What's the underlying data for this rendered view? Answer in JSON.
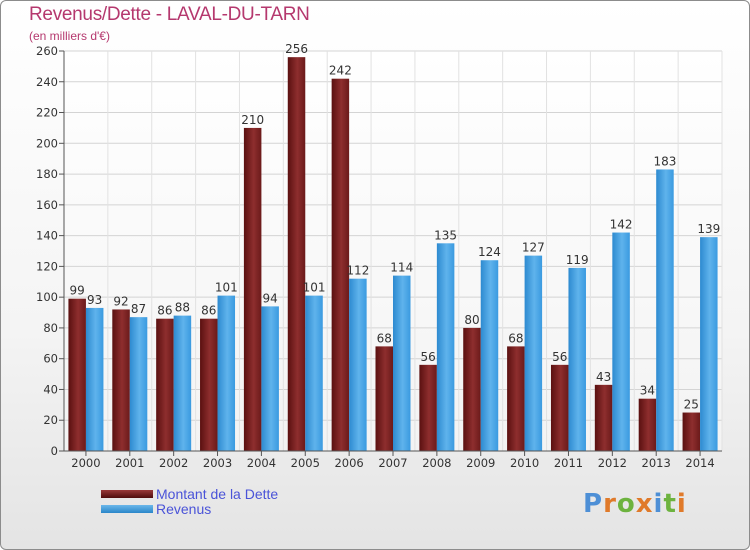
{
  "title": "Revenus/Dette - LAVAL-DU-TARN",
  "subtitle": "(en milliers d'€)",
  "colors": {
    "dette": "#7a1d1d",
    "revenus": "#3f9fdf",
    "title": "#b5386e",
    "legend_text": "#4a53d8"
  },
  "legend": [
    {
      "label": "Montant de la Dette",
      "color": "#7a1d1d"
    },
    {
      "label": "Revenus",
      "color": "#3f9fdf"
    }
  ],
  "logo": {
    "text": "Proxiti"
  },
  "chart_data": {
    "type": "bar",
    "title": "Revenus/Dette - LAVAL-DU-TARN",
    "subtitle": "(en milliers d'€)",
    "categories": [
      "2000",
      "2001",
      "2002",
      "2003",
      "2004",
      "2005",
      "2006",
      "2007",
      "2008",
      "2009",
      "2010",
      "2011",
      "2012",
      "2013",
      "2014"
    ],
    "series": [
      {
        "name": "Montant de la Dette",
        "color": "#7a1d1d",
        "values": [
          99,
          92,
          86,
          86,
          210,
          256,
          242,
          68,
          56,
          80,
          68,
          56,
          43,
          34,
          25
        ]
      },
      {
        "name": "Revenus",
        "color": "#3f9fdf",
        "values": [
          93,
          87,
          88,
          101,
          94,
          101,
          112,
          114,
          135,
          124,
          127,
          119,
          142,
          183,
          139
        ]
      }
    ],
    "ylim": [
      0,
      260
    ],
    "yticks": [
      0,
      20,
      40,
      60,
      80,
      100,
      120,
      140,
      160,
      180,
      200,
      220,
      240,
      260
    ],
    "grid": true,
    "legend_position": "bottom-left"
  }
}
